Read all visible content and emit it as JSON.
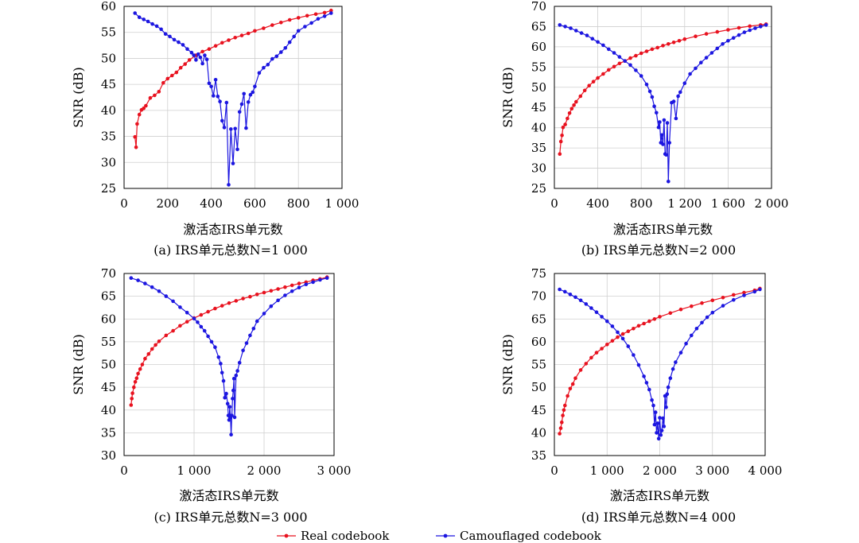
{
  "chart_data": [
    {
      "type": "line",
      "caption": "(a) IRS单元总数N=1 000",
      "xlabel": "激活态IRS单元数",
      "ylabel": "SNR (dB)",
      "xlim": [
        0,
        1000
      ],
      "ylim": [
        25,
        60
      ],
      "xticks": [
        0,
        200,
        400,
        600,
        800,
        1000
      ],
      "xtick_labels": [
        "0",
        "200",
        "400",
        "600",
        "800",
        "1 000"
      ],
      "yticks": [
        25,
        30,
        35,
        40,
        45,
        50,
        55,
        60
      ],
      "ytick_labels": [
        "25",
        "30",
        "35",
        "40",
        "45",
        "50",
        "55",
        "60"
      ],
      "grid": true,
      "series": [
        {
          "name": "Real codebook",
          "color": "#e8121f",
          "x": [
            50,
            55,
            60,
            70,
            80,
            90,
            100,
            120,
            140,
            160,
            180,
            200,
            220,
            240,
            260,
            280,
            300,
            330,
            360,
            390,
            420,
            450,
            480,
            510,
            540,
            570,
            600,
            640,
            680,
            720,
            760,
            800,
            840,
            880,
            920,
            950
          ],
          "y": [
            34.9,
            32.9,
            37.4,
            39.2,
            40.1,
            40.4,
            40.9,
            42.4,
            42.9,
            43.6,
            45.3,
            46.1,
            46.7,
            47.3,
            48.2,
            48.9,
            49.7,
            50.6,
            51.3,
            51.8,
            52.4,
            53.0,
            53.5,
            54.0,
            54.4,
            54.8,
            55.3,
            55.8,
            56.4,
            56.9,
            57.4,
            57.8,
            58.2,
            58.5,
            58.8,
            59.2
          ]
        },
        {
          "name": "Camouflaged codebook",
          "color": "#1c16e0",
          "x": [
            50,
            70,
            90,
            110,
            130,
            150,
            170,
            190,
            210,
            230,
            250,
            270,
            290,
            310,
            320,
            330,
            340,
            350,
            360,
            370,
            380,
            390,
            400,
            410,
            420,
            430,
            440,
            450,
            460,
            470,
            480,
            490,
            500,
            510,
            520,
            530,
            540,
            550,
            560,
            570,
            580,
            590,
            600,
            620,
            640,
            660,
            680,
            700,
            720,
            740,
            760,
            780,
            800,
            830,
            860,
            890,
            920,
            950
          ],
          "y": [
            58.7,
            57.9,
            57.5,
            57.1,
            56.6,
            56.2,
            55.6,
            54.7,
            54.2,
            53.6,
            53.1,
            52.6,
            51.8,
            51.1,
            50.6,
            49.7,
            50.8,
            50.2,
            49.0,
            50.6,
            49.8,
            45.2,
            44.6,
            42.8,
            45.9,
            42.7,
            41.7,
            38.0,
            36.7,
            41.5,
            25.7,
            36.4,
            29.8,
            36.5,
            32.5,
            39.7,
            41.2,
            43.2,
            36.6,
            41.6,
            43.0,
            43.5,
            44.6,
            47.2,
            48.2,
            48.8,
            49.9,
            50.4,
            51.2,
            52.0,
            53.1,
            54.2,
            55.3,
            56.1,
            56.8,
            57.6,
            58.1,
            58.7
          ]
        }
      ]
    },
    {
      "type": "line",
      "caption": "(b) IRS单元总数N=2 000",
      "xlabel": "激活态IRS单元数",
      "ylabel": "SNR (dB)",
      "xlim": [
        0,
        2000
      ],
      "ylim": [
        25,
        70
      ],
      "xticks": [
        0,
        400,
        800,
        1200,
        1600,
        2000
      ],
      "xtick_labels": [
        "0",
        "400",
        "800",
        "1 200",
        "1 600",
        "2 000"
      ],
      "yticks": [
        25,
        30,
        35,
        40,
        45,
        50,
        55,
        60,
        65,
        70
      ],
      "ytick_labels": [
        "25",
        "30",
        "35",
        "40",
        "45",
        "50",
        "55",
        "60",
        "65",
        "70"
      ],
      "grid": true,
      "series": [
        {
          "name": "Real codebook",
          "color": "#e8121f",
          "x": [
            50,
            60,
            70,
            80,
            100,
            120,
            140,
            160,
            180,
            200,
            240,
            280,
            320,
            360,
            400,
            450,
            500,
            550,
            600,
            650,
            700,
            750,
            800,
            850,
            900,
            950,
            1000,
            1050,
            1100,
            1150,
            1200,
            1300,
            1400,
            1500,
            1600,
            1700,
            1800,
            1900,
            1950
          ],
          "y": [
            33.5,
            36.6,
            38.1,
            40.1,
            40.8,
            42.3,
            43.6,
            44.7,
            45.6,
            46.4,
            47.8,
            49.2,
            50.4,
            51.4,
            52.3,
            53.3,
            54.3,
            55.1,
            55.9,
            56.5,
            57.2,
            57.8,
            58.4,
            58.9,
            59.4,
            59.8,
            60.3,
            60.7,
            61.1,
            61.5,
            61.9,
            62.6,
            63.2,
            63.7,
            64.2,
            64.7,
            65.1,
            65.4,
            65.6
          ]
        },
        {
          "name": "Camouflaged codebook",
          "color": "#1c16e0",
          "x": [
            50,
            100,
            150,
            200,
            250,
            300,
            350,
            400,
            450,
            500,
            550,
            600,
            650,
            700,
            750,
            800,
            850,
            880,
            900,
            920,
            940,
            960,
            970,
            980,
            990,
            1000,
            1010,
            1020,
            1030,
            1040,
            1050,
            1060,
            1080,
            1100,
            1120,
            1140,
            1160,
            1200,
            1250,
            1300,
            1350,
            1400,
            1450,
            1500,
            1550,
            1600,
            1650,
            1700,
            1750,
            1800,
            1850,
            1900,
            1950
          ],
          "y": [
            65.4,
            65.0,
            64.6,
            64.0,
            63.4,
            62.8,
            62.0,
            61.2,
            60.4,
            59.4,
            58.5,
            57.5,
            56.5,
            55.5,
            54.2,
            52.8,
            50.7,
            49.0,
            47.6,
            45.3,
            43.7,
            40.1,
            41.4,
            36.3,
            38.2,
            35.9,
            41.9,
            33.5,
            33.3,
            41.2,
            26.7,
            36.3,
            46.2,
            46.5,
            42.3,
            47.8,
            48.8,
            51.0,
            53.3,
            54.7,
            56.1,
            57.3,
            58.5,
            59.6,
            60.7,
            61.5,
            62.2,
            62.9,
            63.6,
            64.1,
            64.6,
            65.0,
            65.4
          ]
        }
      ]
    },
    {
      "type": "line",
      "caption": "(c) IRS单元总数N=3 000",
      "xlabel": "激活态IRS单元数",
      "ylabel": "SNR (dB)",
      "xlim": [
        0,
        3000
      ],
      "ylim": [
        30,
        70
      ],
      "xticks": [
        0,
        1000,
        2000,
        3000
      ],
      "xtick_labels": [
        "0",
        "1 000",
        "2 000",
        "3 000"
      ],
      "yticks": [
        30,
        35,
        40,
        45,
        50,
        55,
        60,
        65,
        70
      ],
      "ytick_labels": [
        "30",
        "35",
        "40",
        "45",
        "50",
        "55",
        "60",
        "65",
        "70"
      ],
      "grid": true,
      "series": [
        {
          "name": "Real codebook",
          "color": "#e8121f",
          "x": [
            100,
            110,
            120,
            140,
            160,
            180,
            200,
            230,
            260,
            300,
            350,
            400,
            450,
            500,
            600,
            700,
            800,
            900,
            1000,
            1100,
            1200,
            1300,
            1400,
            1500,
            1600,
            1700,
            1800,
            1900,
            2000,
            2100,
            2200,
            2300,
            2400,
            2500,
            2600,
            2700,
            2800,
            2900
          ],
          "y": [
            41.1,
            42.5,
            43.7,
            45.0,
            46.2,
            47.0,
            48.0,
            49.0,
            50.0,
            51.3,
            52.3,
            53.4,
            54.3,
            55.1,
            56.4,
            57.4,
            58.5,
            59.4,
            60.2,
            60.9,
            61.6,
            62.3,
            62.9,
            63.5,
            64.0,
            64.5,
            64.9,
            65.4,
            65.8,
            66.2,
            66.6,
            67.0,
            67.4,
            67.8,
            68.1,
            68.5,
            68.8,
            69.2
          ]
        },
        {
          "name": "Camouflaged codebook",
          "color": "#1c16e0",
          "x": [
            100,
            200,
            300,
            400,
            500,
            600,
            700,
            800,
            900,
            1000,
            1050,
            1100,
            1150,
            1200,
            1250,
            1300,
            1350,
            1380,
            1400,
            1420,
            1440,
            1460,
            1480,
            1490,
            1500,
            1510,
            1520,
            1530,
            1540,
            1550,
            1560,
            1570,
            1580,
            1600,
            1620,
            1650,
            1700,
            1750,
            1800,
            1850,
            1900,
            2000,
            2100,
            2200,
            2300,
            2400,
            2500,
            2600,
            2700,
            2800,
            2900
          ],
          "y": [
            69.0,
            68.5,
            67.8,
            67.0,
            66.1,
            65.0,
            63.9,
            62.6,
            61.4,
            60.1,
            59.3,
            58.3,
            57.4,
            56.2,
            55.0,
            53.8,
            51.6,
            50.2,
            48.2,
            46.4,
            42.7,
            43.6,
            41.4,
            38.8,
            37.8,
            40.7,
            38.3,
            34.6,
            38.8,
            42.5,
            44.3,
            46.9,
            38.4,
            47.6,
            48.6,
            50.4,
            53.1,
            54.7,
            56.4,
            57.9,
            59.5,
            61.2,
            62.8,
            64.1,
            65.2,
            66.1,
            66.9,
            67.6,
            68.1,
            68.6,
            69.0
          ]
        }
      ]
    },
    {
      "type": "line",
      "caption": "(d) IRS单元总数N=4 000",
      "xlabel": "激活态IRS单元数",
      "ylabel": "SNR (dB)",
      "xlim": [
        0,
        4000
      ],
      "ylim": [
        35,
        75
      ],
      "xticks": [
        0,
        1000,
        2000,
        3000,
        4000
      ],
      "xtick_labels": [
        "0",
        "1 000",
        "2 000",
        "3 000",
        "4 000"
      ],
      "yticks": [
        35,
        40,
        45,
        50,
        55,
        60,
        65,
        70,
        75
      ],
      "ytick_labels": [
        "35",
        "40",
        "45",
        "50",
        "55",
        "60",
        "65",
        "70",
        "75"
      ],
      "grid": true,
      "series": [
        {
          "name": "Real codebook",
          "color": "#e8121f",
          "x": [
            100,
            120,
            140,
            160,
            180,
            200,
            250,
            300,
            350,
            400,
            500,
            600,
            700,
            800,
            900,
            1000,
            1100,
            1200,
            1300,
            1400,
            1500,
            1600,
            1700,
            1800,
            1900,
            2000,
            2200,
            2400,
            2600,
            2800,
            3000,
            3200,
            3400,
            3600,
            3800,
            3900
          ],
          "y": [
            39.8,
            41.0,
            42.3,
            43.8,
            45.0,
            46.0,
            48.1,
            49.7,
            50.7,
            52.0,
            53.8,
            55.2,
            56.5,
            57.6,
            58.5,
            59.4,
            60.2,
            61.0,
            61.7,
            62.3,
            62.9,
            63.5,
            64.0,
            64.5,
            65.0,
            65.5,
            66.3,
            67.1,
            67.8,
            68.5,
            69.1,
            69.7,
            70.3,
            70.8,
            71.3,
            71.7
          ]
        },
        {
          "name": "Camouflaged codebook",
          "color": "#1c16e0",
          "x": [
            100,
            200,
            300,
            400,
            500,
            600,
            700,
            800,
            900,
            1000,
            1100,
            1200,
            1300,
            1400,
            1500,
            1600,
            1700,
            1750,
            1800,
            1850,
            1880,
            1900,
            1920,
            1940,
            1960,
            1980,
            2000,
            2020,
            2040,
            2060,
            2080,
            2100,
            2120,
            2140,
            2160,
            2200,
            2250,
            2300,
            2400,
            2500,
            2600,
            2700,
            2800,
            2900,
            3000,
            3200,
            3400,
            3600,
            3800,
            3900
          ],
          "y": [
            71.5,
            71.0,
            70.4,
            69.8,
            69.1,
            68.3,
            67.4,
            66.5,
            65.5,
            64.5,
            63.4,
            62.1,
            60.7,
            59.0,
            57.1,
            54.9,
            52.4,
            51.0,
            49.5,
            47.2,
            46.0,
            41.8,
            44.5,
            40.0,
            42.1,
            38.7,
            43.3,
            39.5,
            40.5,
            43.2,
            41.4,
            48.1,
            45.6,
            48.5,
            50.0,
            52.0,
            54.0,
            55.5,
            57.6,
            59.6,
            61.4,
            62.9,
            64.2,
            65.4,
            66.4,
            67.9,
            69.2,
            70.2,
            71.0,
            71.5
          ]
        }
      ]
    }
  ],
  "legend": {
    "items": [
      {
        "label": "Real codebook",
        "color": "#e8121f"
      },
      {
        "label": "Camouflaged codebook",
        "color": "#1c16e0"
      }
    ]
  }
}
